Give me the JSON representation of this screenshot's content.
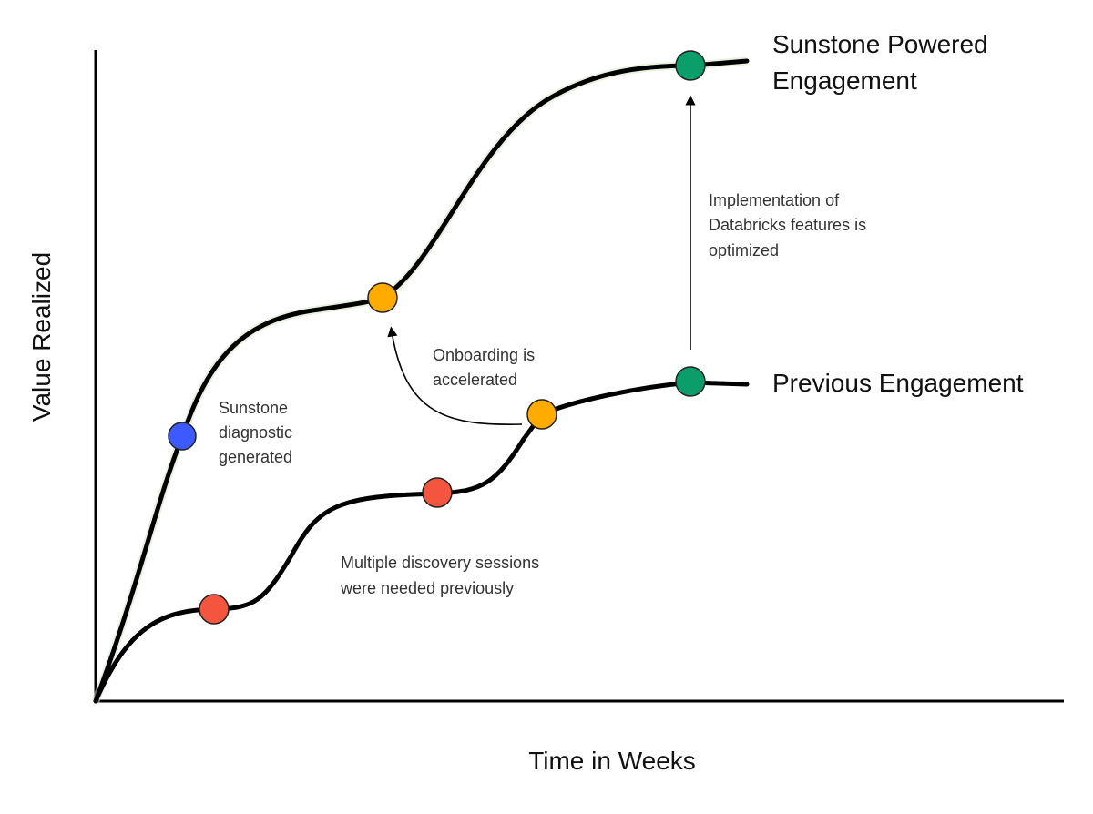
{
  "axes": {
    "y_label": "Value Realized",
    "x_label": "Time in Weeks"
  },
  "series": [
    {
      "name_lines": [
        "Sunstone Powered",
        "Engagement"
      ]
    },
    {
      "name_lines": [
        "Previous Engagement"
      ]
    }
  ],
  "annotations": {
    "diagnostic": [
      "Sunstone",
      "diagnostic",
      "generated"
    ],
    "onboarding": [
      "Onboarding is",
      "accelerated"
    ],
    "implementation": [
      "Implementation of",
      "Databricks features is",
      "optimized"
    ],
    "discovery": [
      "Multiple discovery sessions",
      "were needed previously"
    ]
  },
  "colors": {
    "blue_marker": "#3d5afe",
    "orange_marker": "#ffab00",
    "red_marker": "#f4553f",
    "green_marker": "#0b9d6a",
    "line": "#000000"
  }
}
